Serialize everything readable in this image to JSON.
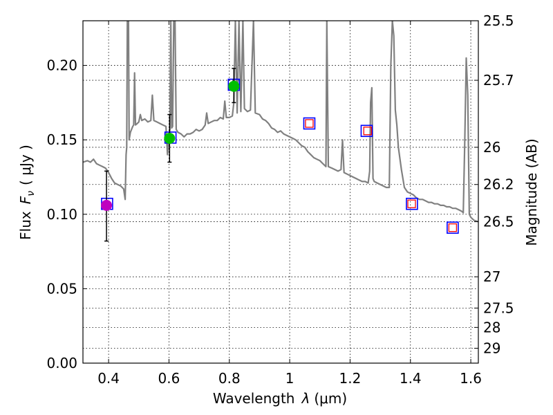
{
  "chart_data": {
    "type": "scatter",
    "xlabel_prefix": "Wavelength",
    "xlabel_symbol": "λ",
    "xlabel_unit": "(μm)",
    "ylabel_prefix": "Flux",
    "ylabel_symbol": "F",
    "ylabel_subscript": "ν",
    "ylabel_unit": "( μJy )",
    "y2label": "Magnitude (AB)",
    "xlim": [
      0.315,
      1.625
    ],
    "ylim": [
      0.0,
      0.23
    ],
    "grid": true,
    "x_ticks": [
      {
        "value": 0.4,
        "label": "0.4"
      },
      {
        "value": 0.6,
        "label": "0.6"
      },
      {
        "value": 0.8,
        "label": "0.8"
      },
      {
        "value": 1.0,
        "label": "1"
      },
      {
        "value": 1.2,
        "label": "1.2"
      },
      {
        "value": 1.4,
        "label": "1.4"
      },
      {
        "value": 1.6,
        "label": "1.6"
      }
    ],
    "y_ticks": [
      {
        "value": 0.0,
        "label": "0.00"
      },
      {
        "value": 0.05,
        "label": "0.05"
      },
      {
        "value": 0.1,
        "label": "0.10"
      },
      {
        "value": 0.15,
        "label": "0.15"
      },
      {
        "value": 0.2,
        "label": "0.20"
      }
    ],
    "y2_ticks": [
      {
        "flux": 0.23,
        "label": "25.5"
      },
      {
        "flux": 0.19,
        "label": "25.7"
      },
      {
        "flux": 0.145,
        "label": "26"
      },
      {
        "flux": 0.12,
        "label": "26.2"
      },
      {
        "flux": 0.095,
        "label": "26.5"
      },
      {
        "flux": 0.058,
        "label": "27"
      },
      {
        "flux": 0.037,
        "label": "27.5"
      },
      {
        "flux": 0.024,
        "label": "28"
      },
      {
        "flux": 0.01,
        "label": "29"
      }
    ],
    "model_points": [
      {
        "x": 0.395,
        "y": 0.107
      },
      {
        "x": 0.605,
        "y": 0.1515
      },
      {
        "x": 0.815,
        "y": 0.187
      },
      {
        "x": 1.065,
        "y": 0.161
      },
      {
        "x": 1.255,
        "y": 0.156
      },
      {
        "x": 1.405,
        "y": 0.107
      },
      {
        "x": 1.54,
        "y": 0.091
      }
    ],
    "observed_points": [
      {
        "x": 0.393,
        "y": 0.106,
        "yerr_low": 0.082,
        "yerr_high": 0.129,
        "color": "#bf00bf"
      },
      {
        "x": 0.602,
        "y": 0.151,
        "yerr_low": 0.135,
        "yerr_high": 0.167,
        "color": "#00bf00"
      },
      {
        "x": 0.815,
        "y": 0.186,
        "yerr_low": 0.175,
        "yerr_high": 0.198,
        "color": "#00bf00"
      }
    ],
    "upper_limit_points": [
      {
        "x": 1.065,
        "y": 0.161
      },
      {
        "x": 1.258,
        "y": 0.156
      },
      {
        "x": 1.404,
        "y": 0.107
      },
      {
        "x": 1.54,
        "y": 0.091
      }
    ],
    "spectrum": [
      [
        0.315,
        0.135
      ],
      [
        0.33,
        0.136
      ],
      [
        0.34,
        0.135
      ],
      [
        0.35,
        0.137
      ],
      [
        0.36,
        0.134
      ],
      [
        0.37,
        0.133
      ],
      [
        0.38,
        0.132
      ],
      [
        0.39,
        0.131
      ],
      [
        0.4,
        0.128
      ],
      [
        0.41,
        0.124
      ],
      [
        0.42,
        0.121
      ],
      [
        0.43,
        0.12
      ],
      [
        0.44,
        0.119
      ],
      [
        0.45,
        0.117
      ],
      [
        0.455,
        0.11
      ],
      [
        0.458,
        0.14
      ],
      [
        0.46,
        0.145
      ],
      [
        0.462,
        0.23
      ],
      [
        0.466,
        0.23
      ],
      [
        0.468,
        0.15
      ],
      [
        0.472,
        0.155
      ],
      [
        0.476,
        0.157
      ],
      [
        0.48,
        0.159
      ],
      [
        0.483,
        0.16
      ],
      [
        0.486,
        0.195
      ],
      [
        0.489,
        0.16
      ],
      [
        0.495,
        0.161
      ],
      [
        0.5,
        0.162
      ],
      [
        0.505,
        0.167
      ],
      [
        0.51,
        0.163
      ],
      [
        0.52,
        0.164
      ],
      [
        0.53,
        0.162
      ],
      [
        0.54,
        0.163
      ],
      [
        0.545,
        0.18
      ],
      [
        0.55,
        0.163
      ],
      [
        0.56,
        0.162
      ],
      [
        0.57,
        0.161
      ],
      [
        0.58,
        0.16
      ],
      [
        0.59,
        0.159
      ],
      [
        0.595,
        0.14
      ],
      [
        0.6,
        0.152
      ],
      [
        0.603,
        0.157
      ],
      [
        0.606,
        0.23
      ],
      [
        0.609,
        0.158
      ],
      [
        0.612,
        0.159
      ],
      [
        0.616,
        0.23
      ],
      [
        0.62,
        0.23
      ],
      [
        0.624,
        0.157
      ],
      [
        0.63,
        0.155
      ],
      [
        0.64,
        0.154
      ],
      [
        0.65,
        0.152
      ],
      [
        0.66,
        0.154
      ],
      [
        0.67,
        0.154
      ],
      [
        0.68,
        0.155
      ],
      [
        0.69,
        0.157
      ],
      [
        0.7,
        0.156
      ],
      [
        0.71,
        0.157
      ],
      [
        0.72,
        0.16
      ],
      [
        0.725,
        0.168
      ],
      [
        0.73,
        0.161
      ],
      [
        0.74,
        0.162
      ],
      [
        0.75,
        0.163
      ],
      [
        0.76,
        0.163
      ],
      [
        0.77,
        0.165
      ],
      [
        0.78,
        0.164
      ],
      [
        0.785,
        0.176
      ],
      [
        0.79,
        0.165
      ],
      [
        0.8,
        0.165
      ],
      [
        0.81,
        0.166
      ],
      [
        0.815,
        0.175
      ],
      [
        0.82,
        0.23
      ],
      [
        0.826,
        0.168
      ],
      [
        0.832,
        0.23
      ],
      [
        0.838,
        0.169
      ],
      [
        0.845,
        0.23
      ],
      [
        0.85,
        0.171
      ],
      [
        0.86,
        0.169
      ],
      [
        0.87,
        0.17
      ],
      [
        0.88,
        0.23
      ],
      [
        0.886,
        0.168
      ],
      [
        0.9,
        0.167
      ],
      [
        0.91,
        0.164
      ],
      [
        0.92,
        0.163
      ],
      [
        0.93,
        0.161
      ],
      [
        0.94,
        0.158
      ],
      [
        0.95,
        0.157
      ],
      [
        0.96,
        0.155
      ],
      [
        0.97,
        0.156
      ],
      [
        0.98,
        0.154
      ],
      [
        0.99,
        0.153
      ],
      [
        1.0,
        0.152
      ],
      [
        1.01,
        0.151
      ],
      [
        1.02,
        0.15
      ],
      [
        1.03,
        0.148
      ],
      [
        1.04,
        0.146
      ],
      [
        1.05,
        0.145
      ],
      [
        1.06,
        0.142
      ],
      [
        1.07,
        0.14
      ],
      [
        1.08,
        0.138
      ],
      [
        1.09,
        0.137
      ],
      [
        1.1,
        0.136
      ],
      [
        1.11,
        0.134
      ],
      [
        1.12,
        0.132
      ],
      [
        1.123,
        0.23
      ],
      [
        1.128,
        0.132
      ],
      [
        1.14,
        0.131
      ],
      [
        1.15,
        0.13
      ],
      [
        1.16,
        0.129
      ],
      [
        1.17,
        0.13
      ],
      [
        1.175,
        0.15
      ],
      [
        1.18,
        0.128
      ],
      [
        1.19,
        0.127
      ],
      [
        1.2,
        0.126
      ],
      [
        1.21,
        0.125
      ],
      [
        1.22,
        0.124
      ],
      [
        1.23,
        0.123
      ],
      [
        1.24,
        0.122
      ],
      [
        1.25,
        0.122
      ],
      [
        1.26,
        0.121
      ],
      [
        1.265,
        0.129
      ],
      [
        1.268,
        0.175
      ],
      [
        1.272,
        0.185
      ],
      [
        1.276,
        0.124
      ],
      [
        1.28,
        0.122
      ],
      [
        1.29,
        0.121
      ],
      [
        1.3,
        0.12
      ],
      [
        1.31,
        0.119
      ],
      [
        1.32,
        0.118
      ],
      [
        1.33,
        0.118
      ],
      [
        1.335,
        0.2
      ],
      [
        1.34,
        0.23
      ],
      [
        1.345,
        0.22
      ],
      [
        1.35,
        0.17
      ],
      [
        1.355,
        0.16
      ],
      [
        1.36,
        0.145
      ],
      [
        1.37,
        0.13
      ],
      [
        1.38,
        0.118
      ],
      [
        1.39,
        0.115
      ],
      [
        1.4,
        0.114
      ],
      [
        1.41,
        0.113
      ],
      [
        1.42,
        0.111
      ],
      [
        1.43,
        0.11
      ],
      [
        1.44,
        0.11
      ],
      [
        1.45,
        0.109
      ],
      [
        1.46,
        0.108
      ],
      [
        1.47,
        0.108
      ],
      [
        1.48,
        0.107
      ],
      [
        1.49,
        0.107
      ],
      [
        1.5,
        0.106
      ],
      [
        1.51,
        0.106
      ],
      [
        1.52,
        0.105
      ],
      [
        1.53,
        0.105
      ],
      [
        1.54,
        0.104
      ],
      [
        1.55,
        0.104
      ],
      [
        1.56,
        0.103
      ],
      [
        1.57,
        0.102
      ],
      [
        1.575,
        0.101
      ],
      [
        1.58,
        0.15
      ],
      [
        1.585,
        0.205
      ],
      [
        1.59,
        0.18
      ],
      [
        1.595,
        0.1
      ],
      [
        1.6,
        0.098
      ],
      [
        1.61,
        0.096
      ],
      [
        1.625,
        0.095
      ]
    ]
  }
}
